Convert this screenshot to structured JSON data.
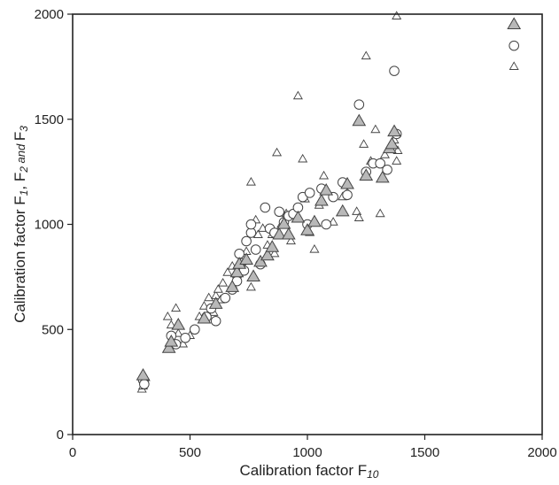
{
  "chart_data": {
    "type": "scatter",
    "xlabel": {
      "base": "Calibration factor F",
      "sub": "10"
    },
    "ylabel": {
      "parts": [
        {
          "text": "Calibration factor F",
          "style": "normal"
        },
        {
          "text": "1",
          "style": "sub"
        },
        {
          "text": ", F",
          "style": "normal"
        },
        {
          "text": "2",
          "style": "sub"
        },
        {
          "text": " and ",
          "style": "and"
        },
        {
          "text": "F",
          "style": "normal"
        },
        {
          "text": "3",
          "style": "sub"
        }
      ]
    },
    "xlim": [
      0,
      2000
    ],
    "ylim": [
      0,
      2000
    ],
    "xticks": [
      0,
      500,
      1000,
      1500,
      2000
    ],
    "yticks": [
      0,
      500,
      1000,
      1500,
      2000
    ],
    "grid": false,
    "legend": "none",
    "colors": {
      "large_triangle_fill": "#b8b8b8",
      "marker_stroke": "#444444",
      "open_fill": "#ffffff"
    },
    "series": [
      {
        "marker": "small-open-triangle",
        "points": [
          [
            295,
            215
          ],
          [
            300,
            230
          ],
          [
            305,
            250
          ],
          [
            310,
            270
          ],
          [
            405,
            560
          ],
          [
            420,
            520
          ],
          [
            440,
            600
          ],
          [
            450,
            480
          ],
          [
            470,
            430
          ],
          [
            500,
            470
          ],
          [
            540,
            560
          ],
          [
            560,
            610
          ],
          [
            580,
            650
          ],
          [
            600,
            580
          ],
          [
            610,
            660
          ],
          [
            620,
            690
          ],
          [
            630,
            640
          ],
          [
            640,
            720
          ],
          [
            660,
            770
          ],
          [
            680,
            800
          ],
          [
            700,
            760
          ],
          [
            720,
            820
          ],
          [
            740,
            870
          ],
          [
            760,
            700
          ],
          [
            760,
            1200
          ],
          [
            780,
            1020
          ],
          [
            790,
            950
          ],
          [
            810,
            980
          ],
          [
            830,
            900
          ],
          [
            850,
            950
          ],
          [
            860,
            860
          ],
          [
            870,
            1340
          ],
          [
            890,
            1000
          ],
          [
            910,
            1050
          ],
          [
            930,
            920
          ],
          [
            960,
            1610
          ],
          [
            980,
            1310
          ],
          [
            990,
            1120
          ],
          [
            1010,
            960
          ],
          [
            1030,
            880
          ],
          [
            1050,
            1090
          ],
          [
            1070,
            1230
          ],
          [
            1110,
            1010
          ],
          [
            1150,
            1130
          ],
          [
            1170,
            1150
          ],
          [
            1210,
            1060
          ],
          [
            1220,
            1030
          ],
          [
            1240,
            1380
          ],
          [
            1250,
            1800
          ],
          [
            1270,
            1300
          ],
          [
            1290,
            1450
          ],
          [
            1310,
            1050
          ],
          [
            1330,
            1330
          ],
          [
            1370,
            1400
          ],
          [
            1380,
            1300
          ],
          [
            1380,
            1990
          ],
          [
            1385,
            1350
          ],
          [
            1880,
            1750
          ]
        ]
      },
      {
        "marker": "open-circle",
        "points": [
          [
            300,
            260
          ],
          [
            305,
            240
          ],
          [
            420,
            470
          ],
          [
            440,
            430
          ],
          [
            480,
            460
          ],
          [
            520,
            500
          ],
          [
            570,
            560
          ],
          [
            590,
            600
          ],
          [
            610,
            540
          ],
          [
            650,
            650
          ],
          [
            680,
            690
          ],
          [
            700,
            730
          ],
          [
            710,
            860
          ],
          [
            730,
            780
          ],
          [
            740,
            920
          ],
          [
            760,
            960
          ],
          [
            760,
            1000
          ],
          [
            780,
            880
          ],
          [
            800,
            810
          ],
          [
            820,
            1080
          ],
          [
            840,
            980
          ],
          [
            860,
            960
          ],
          [
            880,
            1060
          ],
          [
            900,
            1010
          ],
          [
            920,
            1040
          ],
          [
            940,
            1050
          ],
          [
            960,
            1080
          ],
          [
            980,
            1130
          ],
          [
            1000,
            1000
          ],
          [
            1010,
            1150
          ],
          [
            1060,
            1170
          ],
          [
            1080,
            1000
          ],
          [
            1110,
            1130
          ],
          [
            1150,
            1200
          ],
          [
            1170,
            1140
          ],
          [
            1220,
            1570
          ],
          [
            1250,
            1250
          ],
          [
            1280,
            1290
          ],
          [
            1310,
            1290
          ],
          [
            1340,
            1260
          ],
          [
            1370,
            1730
          ],
          [
            1380,
            1430
          ],
          [
            1880,
            1850
          ]
        ]
      },
      {
        "marker": "large-filled-triangle",
        "points": [
          [
            300,
            280
          ],
          [
            410,
            410
          ],
          [
            420,
            440
          ],
          [
            450,
            520
          ],
          [
            560,
            550
          ],
          [
            610,
            620
          ],
          [
            680,
            700
          ],
          [
            700,
            770
          ],
          [
            710,
            810
          ],
          [
            740,
            830
          ],
          [
            770,
            750
          ],
          [
            800,
            820
          ],
          [
            830,
            850
          ],
          [
            850,
            890
          ],
          [
            880,
            950
          ],
          [
            900,
            1000
          ],
          [
            920,
            950
          ],
          [
            960,
            1030
          ],
          [
            1000,
            970
          ],
          [
            1030,
            1010
          ],
          [
            1060,
            1110
          ],
          [
            1080,
            1160
          ],
          [
            1150,
            1060
          ],
          [
            1170,
            1190
          ],
          [
            1220,
            1490
          ],
          [
            1250,
            1230
          ],
          [
            1320,
            1220
          ],
          [
            1350,
            1360
          ],
          [
            1360,
            1380
          ],
          [
            1370,
            1440
          ],
          [
            1880,
            1950
          ]
        ]
      }
    ]
  }
}
